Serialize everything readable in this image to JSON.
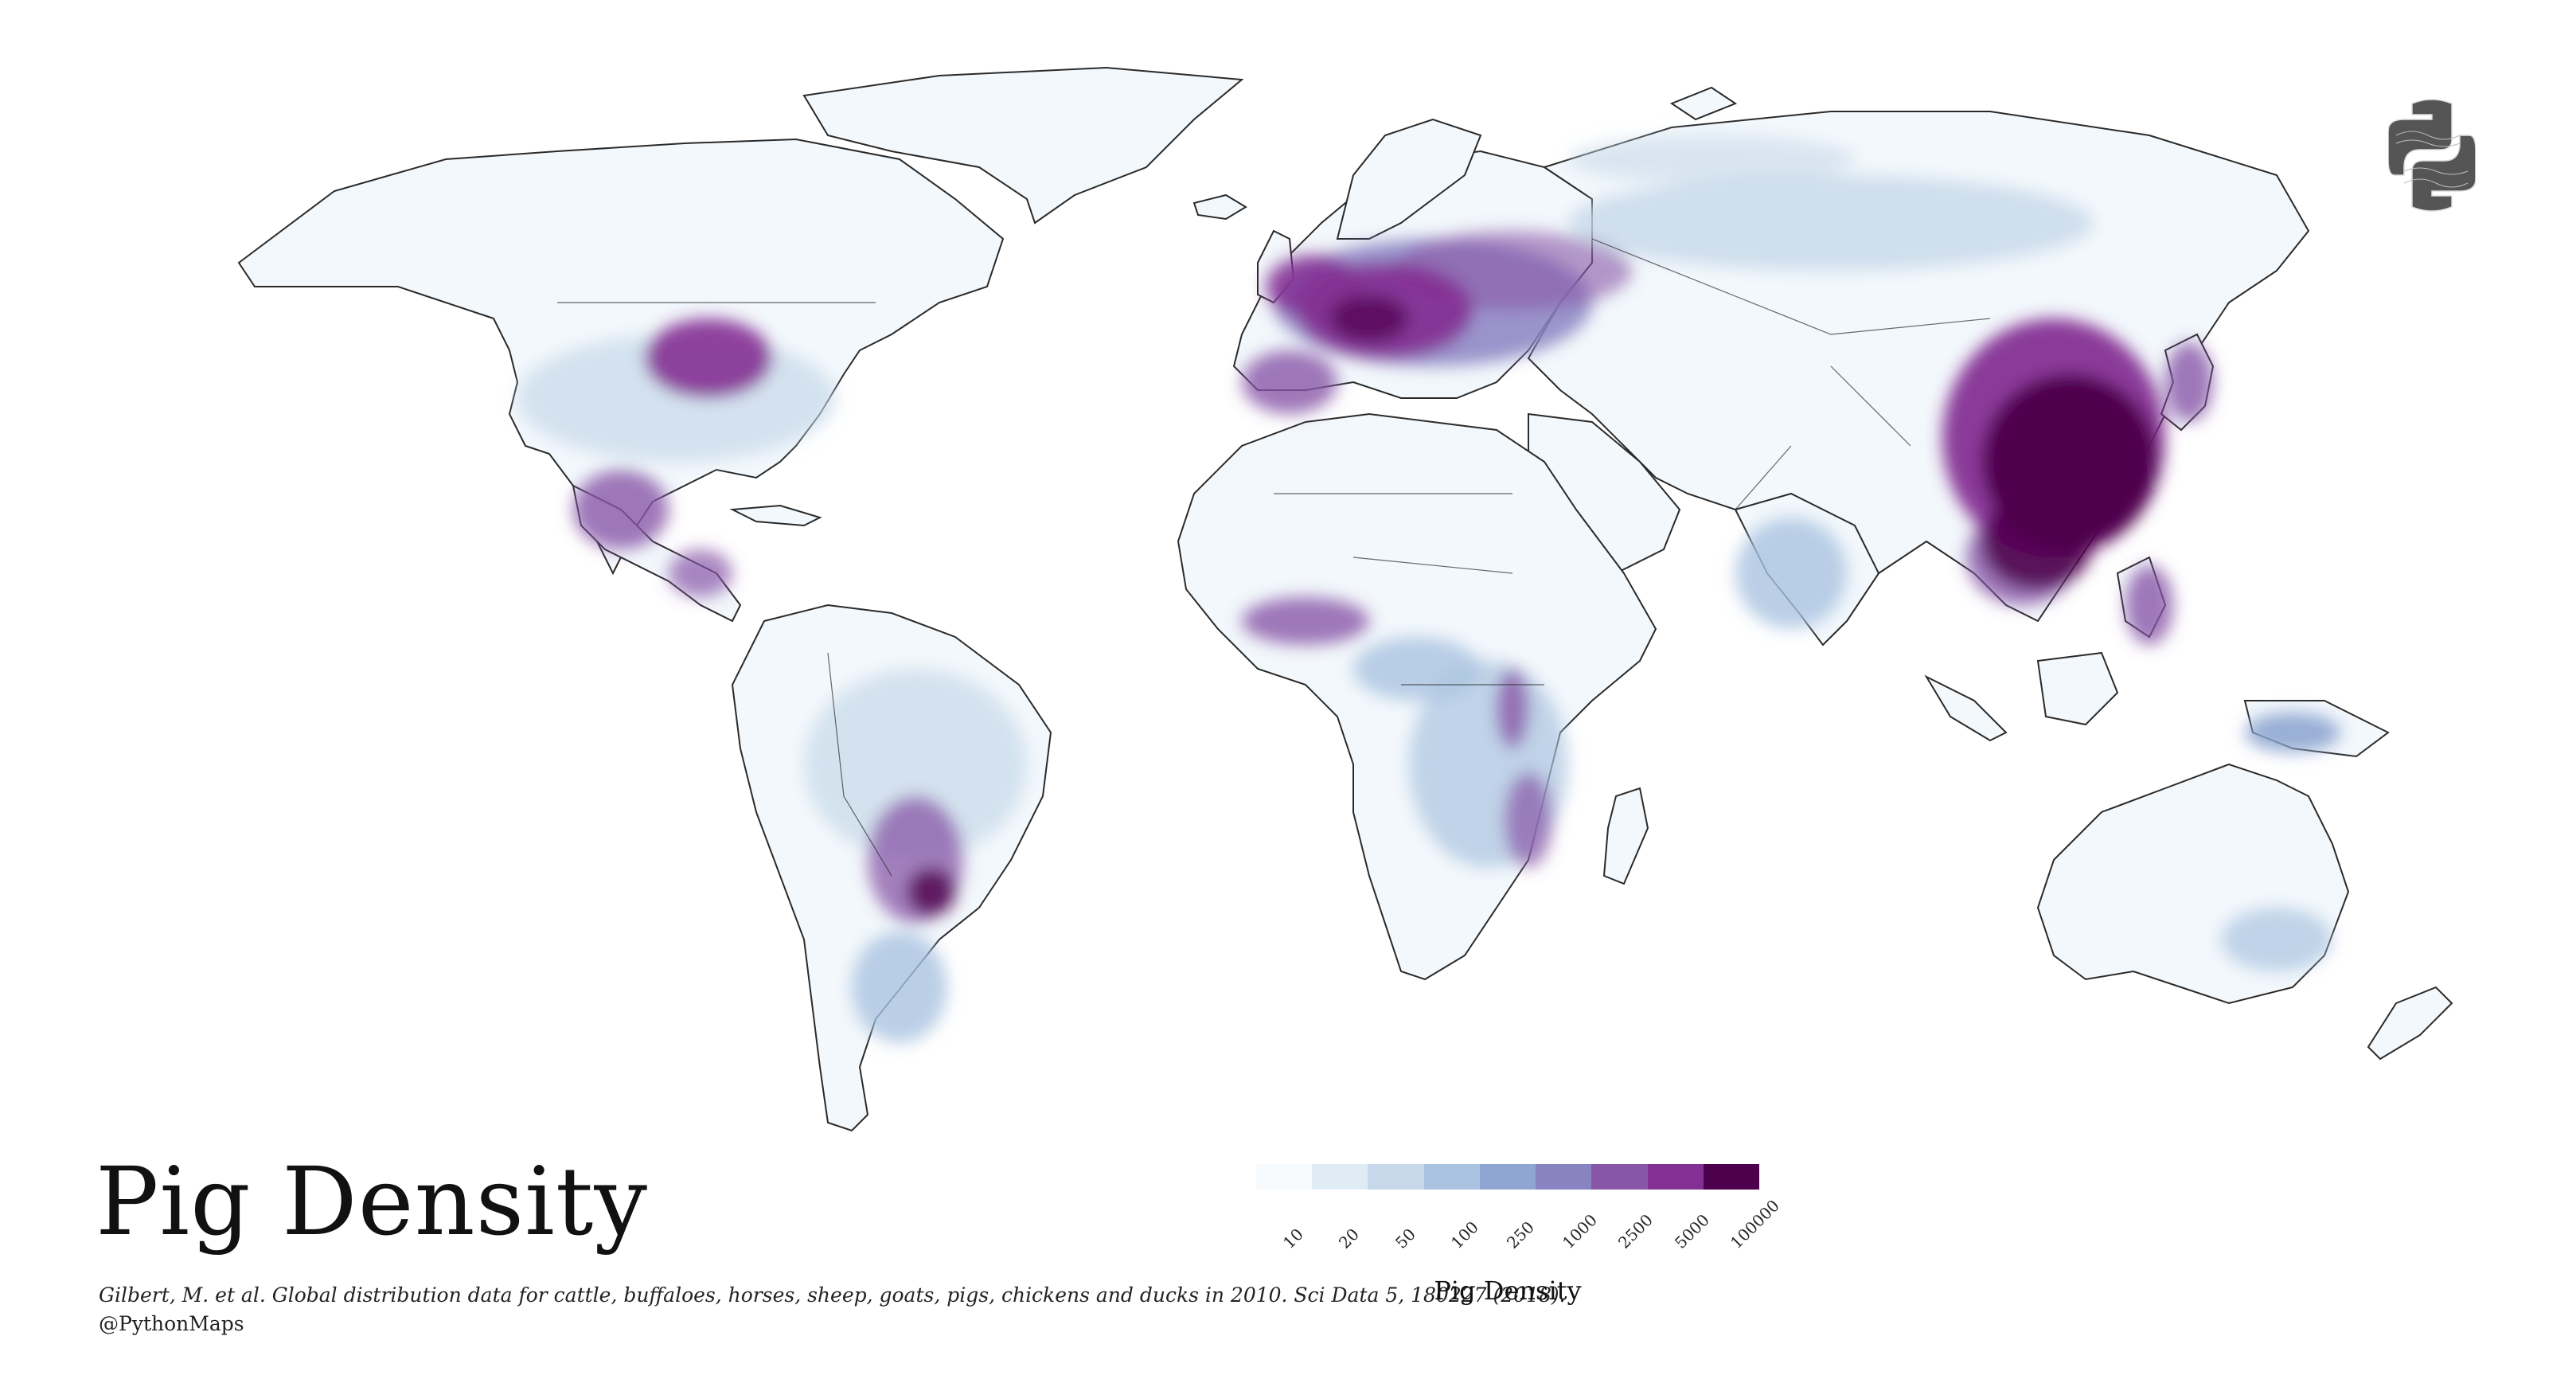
{
  "title": "Pig Density",
  "source": "Gilbert, M. et al. Global distribution data for cattle, buffaloes, horses, sheep, goats, pigs, chickens and ducks in 2010. Sci Data 5, 180227 (2018).",
  "credit": "@PythonMaps",
  "legend": {
    "title": "Pig Density",
    "bins": [
      {
        "label": "10",
        "color": "#f7fbfd"
      },
      {
        "label": "20",
        "color": "#e0ecf4"
      },
      {
        "label": "50",
        "color": "#c6d8ea"
      },
      {
        "label": "100",
        "color": "#a9c3e0"
      },
      {
        "label": "250",
        "color": "#8fa6d2"
      },
      {
        "label": "1000",
        "color": "#8a83c2"
      },
      {
        "label": "2500",
        "color": "#8856a7"
      },
      {
        "label": "5000",
        "color": "#842f93"
      },
      {
        "label": "100000",
        "color": "#4d004b"
      }
    ]
  },
  "colors": {
    "land_base": "#f3f8fc",
    "border": "#2a2a2a",
    "ocean": "#ffffff"
  },
  "icons": {
    "logo": "python-logo-icon"
  }
}
